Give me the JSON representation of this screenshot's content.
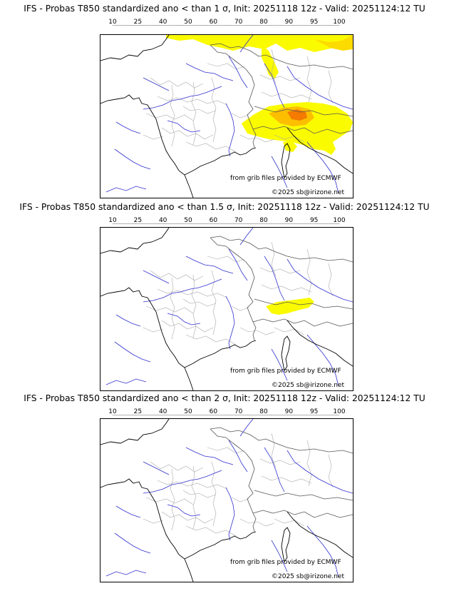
{
  "legend": {
    "ticks": [
      "10",
      "25",
      "40",
      "50",
      "60",
      "70",
      "80",
      "90",
      "95",
      "100"
    ],
    "colors": [
      "#fbfb00",
      "#fcdc00",
      "#fcbf00",
      "#fb9d00",
      "#f47a00",
      "#ea5a00",
      "#dc2a00",
      "#b80c00",
      "#960000",
      "#6e0000"
    ]
  },
  "panels": [
    {
      "title": "IFS - Probas T850  standardized ano < than 1 σ, Init: 20251118 12z - Valid: 20251124:12 TU",
      "source_note": "from grib files provided by ECMWF",
      "copyright": "©2025 sb@irizone.net",
      "probability_areas": [
        {
          "region": "northern France / Belgium / Germany",
          "level": "10-25"
        },
        {
          "region": "Alps / northern Italy",
          "level": "40-70"
        }
      ]
    },
    {
      "title": "IFS - Probas T850  standardized ano < than 1.5 σ, Init: 20251118 12z - Valid: 20251124:12 TU",
      "source_note": "from grib files provided by ECMWF",
      "copyright": "©2025 sb@irizone.net",
      "probability_areas": [
        {
          "region": "western Alps",
          "level": "10-25"
        }
      ]
    },
    {
      "title": "IFS - Probas T850  standardized ano < than 2 σ, Init: 20251118 12z - Valid: 20251124:12 TU",
      "source_note": "from grib files provided by ECMWF",
      "copyright": "©2025 sb@irizone.net",
      "probability_areas": []
    }
  ]
}
